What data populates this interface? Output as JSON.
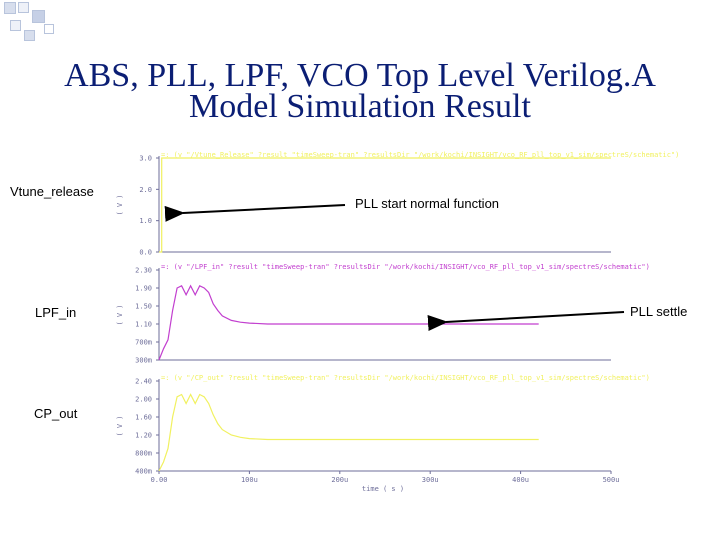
{
  "slide": {
    "title_line1": "ABS, PLL, LPF, VCO Top Level Verilog.A",
    "title_line2": "Model Simulation Result"
  },
  "labels": {
    "vtune": "Vtune_release",
    "lpf": "LPF_in",
    "cp": "CP_out",
    "pll_start": "PLL  start normal function",
    "pll_settle": "PLL settle"
  },
  "colors": {
    "title": "#0b1e74",
    "vtune_trace": "#f1f160",
    "lpf_trace": "#c23fcf",
    "cp_trace": "#f1f160",
    "axis": "#6e6e9a"
  },
  "chart_data": [
    {
      "type": "line",
      "series_label": "Vtune_release",
      "header": "=: (v \"/Vtune_Release\" ?result \"timeSweep-tran\" ?resultsDir \"/work/kochi/INSIGHT/vco_RF_pll_top_v1_sim/spectreS/schematic\")",
      "ylabel": "( V )",
      "yticks": [
        "3.0",
        "2.0",
        "1.0",
        "0.0"
      ],
      "ylim": [
        0,
        3
      ],
      "x": [
        0,
        3,
        3.01,
        500
      ],
      "y": [
        0,
        0,
        3,
        3
      ]
    },
    {
      "type": "line",
      "series_label": "LPF_in",
      "header": "=: (v \"/LPF_in\" ?result \"timeSweep-tran\" ?resultsDir \"/work/kochi/INSIGHT/vco_RF_pll_top_v1_sim/spectreS/schematic\")",
      "ylabel": "( V )",
      "yticks": [
        "2.30",
        "1.90",
        "1.50",
        "1.10",
        "700m",
        "300m"
      ],
      "ylim": [
        0.3,
        2.3
      ],
      "x": [
        0,
        5,
        10,
        15,
        20,
        25,
        30,
        35,
        40,
        45,
        50,
        55,
        60,
        65,
        70,
        80,
        90,
        100,
        120,
        150,
        200,
        250,
        300,
        350,
        400,
        420
      ],
      "y": [
        0.3,
        0.55,
        0.75,
        1.4,
        1.9,
        1.95,
        1.75,
        1.95,
        1.75,
        1.95,
        1.9,
        1.8,
        1.55,
        1.4,
        1.28,
        1.18,
        1.14,
        1.12,
        1.1,
        1.1,
        1.1,
        1.1,
        1.1,
        1.1,
        1.1,
        1.1
      ]
    },
    {
      "type": "line",
      "series_label": "CP_out",
      "header": "=: (v \"/CP_out\" ?result \"timeSweep-tran\" ?resultsDir \"/work/kochi/INSIGHT/vco_RF_pll_top_v1_sim/spectreS/schematic\")",
      "ylabel": "( V )",
      "yticks": [
        "2.40",
        "2.00",
        "1.60",
        "1.20",
        "800m",
        "400m"
      ],
      "ylim": [
        0.4,
        2.4
      ],
      "xticks": [
        "0.00",
        "100u",
        "200u",
        "300u",
        "400u",
        "500u"
      ],
      "xlabel": "time ( s )",
      "xlim": [
        0,
        500
      ],
      "x": [
        0,
        5,
        10,
        15,
        20,
        25,
        30,
        35,
        40,
        45,
        50,
        55,
        60,
        65,
        70,
        80,
        90,
        100,
        120,
        150,
        200,
        250,
        300,
        350,
        400,
        420
      ],
      "y": [
        0.4,
        0.6,
        0.9,
        1.6,
        2.05,
        2.1,
        1.9,
        2.1,
        1.9,
        2.1,
        2.05,
        1.9,
        1.65,
        1.45,
        1.32,
        1.2,
        1.15,
        1.12,
        1.1,
        1.1,
        1.1,
        1.1,
        1.1,
        1.1,
        1.1,
        1.1
      ]
    }
  ]
}
